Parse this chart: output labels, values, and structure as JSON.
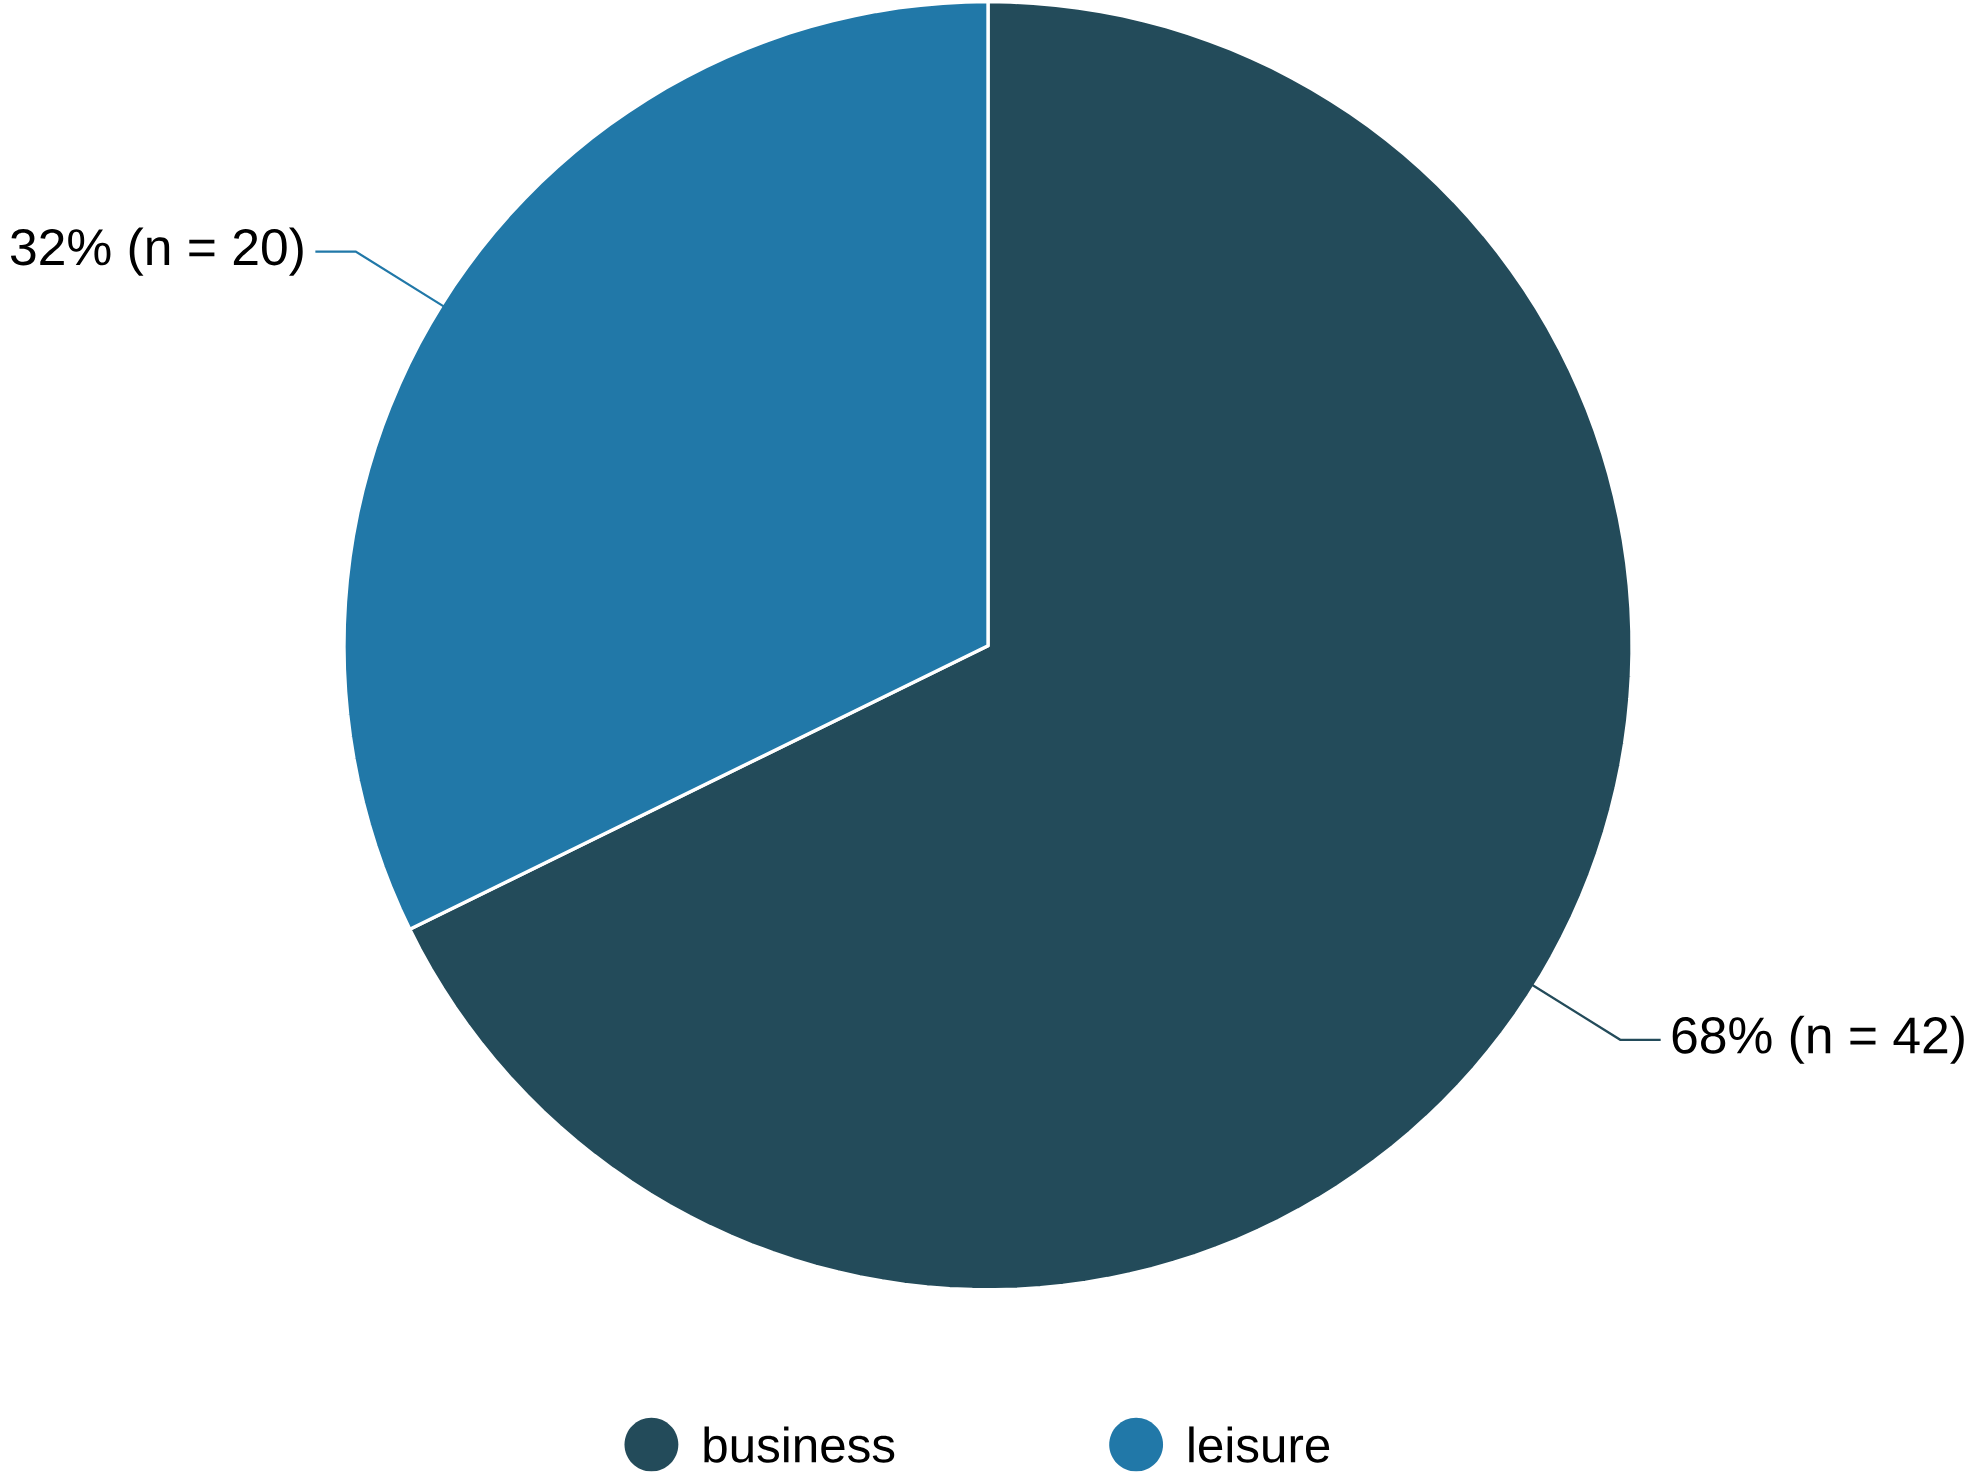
{
  "chart_data": {
    "type": "pie",
    "categories": [
      "business",
      "leisure"
    ],
    "values": [
      42,
      20
    ],
    "colors": [
      "#234b5a",
      "#2178a8"
    ],
    "value_labels": [
      "68% (n = 42)",
      "32% (n = 20)"
    ],
    "legend": "bottom"
  }
}
